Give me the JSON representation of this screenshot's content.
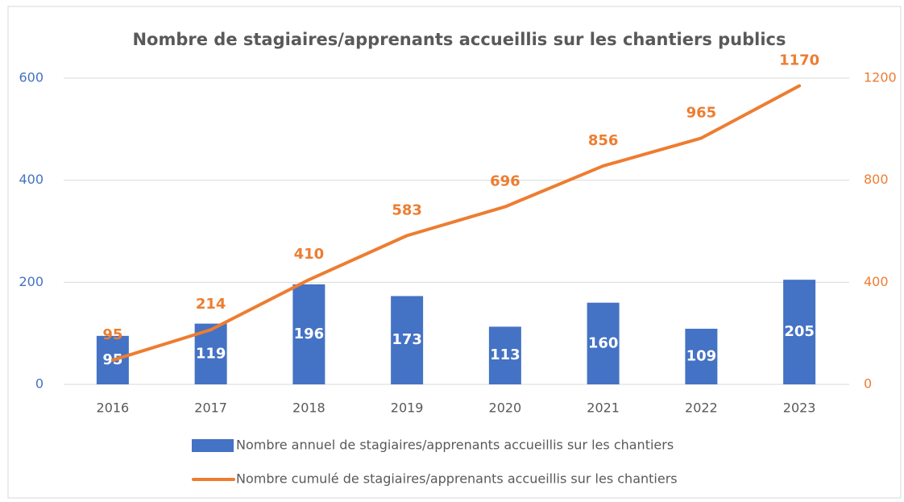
{
  "chart_data": {
    "type": "combo",
    "title": "Nombre de stagiaires/apprenants accueillis sur les chantiers publics",
    "categories": [
      "2016",
      "2017",
      "2018",
      "2019",
      "2020",
      "2021",
      "2022",
      "2023"
    ],
    "series": [
      {
        "name": "Nombre annuel de stagiaires/apprenants accueillis sur les chantiers",
        "type": "bar",
        "color": "#4472c4",
        "values": [
          95,
          119,
          196,
          173,
          113,
          160,
          109,
          205
        ]
      },
      {
        "name": "Nombre cumulé de stagiaires/apprenants accueillis sur les chantiers",
        "type": "line",
        "axis": "y2",
        "color": "#ed7d31",
        "values": [
          95,
          214,
          410,
          583,
          696,
          856,
          965,
          1170
        ]
      }
    ],
    "ylim": [
      0,
      600
    ],
    "yticks": [
      0,
      200,
      400,
      600
    ],
    "y2lim": [
      0,
      1200
    ],
    "y2ticks": [
      0,
      400,
      800,
      1200
    ],
    "grid": true,
    "legend": "bottom"
  }
}
